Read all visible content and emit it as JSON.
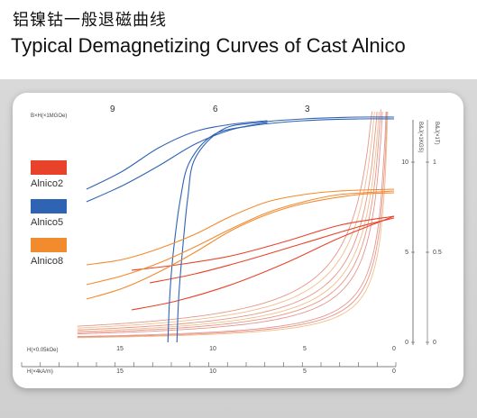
{
  "header": {
    "title_cn": "铝镍钴一般退磁曲线",
    "title_en": "Typical Demagnetizing Curves of Cast Alnico"
  },
  "chart_data": {
    "type": "line",
    "title": "Typical Demagnetizing Curves of Cast Alnico",
    "bh_axis_label": "B×H(×1MGOe)",
    "bh_labels": [
      "9",
      "6",
      "3"
    ],
    "xlabel_top": "H(×0.05kOe)",
    "xlabel_bottom": "H(×4kA/m)",
    "x_ticks_top": [
      "15",
      "10",
      "5",
      "0"
    ],
    "x_ticks_bottom": [
      "15",
      "10",
      "5",
      "0"
    ],
    "ylabel_kgs": "B&J(×1KGS)",
    "ylabel_t": "B&J(×1T)",
    "y_ticks_kgs": [
      "10",
      "5",
      "0"
    ],
    "y_ticks_t": [
      "1",
      "0.5",
      "0"
    ],
    "xlim": [
      17.5,
      0
    ],
    "ylim": [
      0,
      12.5
    ],
    "legend": [
      {
        "name": "Alnico2",
        "color": "#e8432a"
      },
      {
        "name": "Alnico5",
        "color": "#2f63b3"
      },
      {
        "name": "Alnico8",
        "color": "#f28a2e"
      }
    ],
    "bh_constants": [
      9,
      6,
      3
    ],
    "series": [
      {
        "name": "Alnico2",
        "color": "#e8432a",
        "curves": [
          {
            "x": [
              13.5,
              11,
              8,
              5,
              2,
              0
            ],
            "y": [
              3.3,
              3.8,
              4.6,
              5.5,
              6.4,
              6.9
            ]
          },
          {
            "x": [
              14.5,
              12,
              9,
              6,
              3,
              0
            ],
            "y": [
              1.8,
              2.3,
              3.2,
              4.4,
              5.8,
              7.0
            ]
          },
          {
            "x": [
              14.5,
              12,
              9,
              6,
              3,
              0
            ],
            "y": [
              4.0,
              4.3,
              4.8,
              5.6,
              6.5,
              7.0
            ]
          }
        ]
      },
      {
        "name": "Alnico5",
        "color": "#2f63b3",
        "curves": [
          {
            "x": [
              12.5,
              12.4,
              12.2,
              11.8,
              11.3,
              10,
              8,
              5,
              2,
              0
            ],
            "y": [
              0,
              2.5,
              5,
              8.0,
              10.0,
              11.5,
              12.0,
              12.3,
              12.4,
              12.4
            ]
          },
          {
            "x": [
              12.0,
              11.9,
              11.7,
              11.4,
              11.0,
              9.5,
              7.5,
              5,
              2,
              0
            ],
            "y": [
              0,
              2.5,
              5,
              8.0,
              10.2,
              11.8,
              12.2,
              12.4,
              12.5,
              12.5
            ]
          },
          {
            "x": [
              17.0,
              15,
              13,
              11,
              9,
              7
            ],
            "y": [
              8.5,
              9.5,
              10.8,
              11.7,
              12.1,
              12.3
            ]
          },
          {
            "x": [
              17.0,
              15,
              13,
              11,
              9,
              7
            ],
            "y": [
              7.8,
              8.7,
              9.8,
              11.0,
              11.8,
              12.2
            ]
          }
        ]
      },
      {
        "name": "Alnico8",
        "color": "#f28a2e",
        "curves": [
          {
            "x": [
              17,
              15,
              13,
              11,
              9,
              7,
              5,
              3,
              0
            ],
            "y": [
              4.3,
              4.6,
              5.2,
              6.0,
              7.0,
              7.8,
              8.2,
              8.4,
              8.5
            ]
          },
          {
            "x": [
              17,
              15,
              13,
              11,
              9,
              7,
              5,
              3,
              0
            ],
            "y": [
              3.2,
              3.7,
              4.4,
              5.3,
              6.3,
              7.2,
              7.8,
              8.2,
              8.4
            ]
          },
          {
            "x": [
              17,
              15,
              13,
              11,
              9,
              7,
              5,
              2,
              0
            ],
            "y": [
              2.4,
              3.0,
              3.9,
              5.0,
              6.2,
              7.1,
              7.7,
              8.2,
              8.3
            ]
          }
        ]
      }
    ]
  }
}
